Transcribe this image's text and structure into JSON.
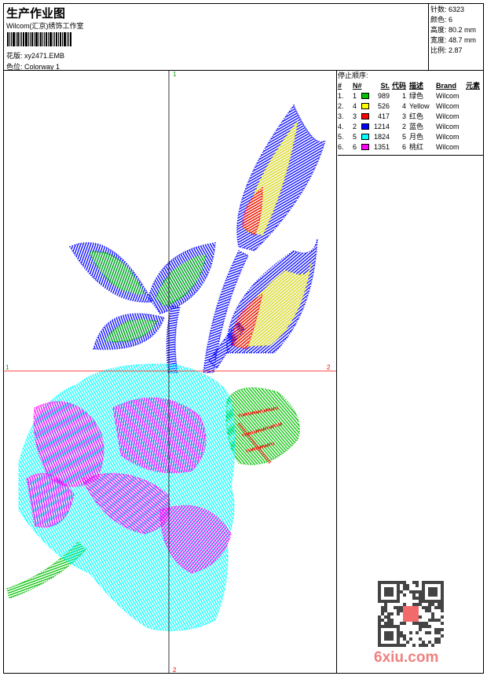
{
  "header": {
    "title": "生产作业图",
    "company": "Wilcom(汇京)绣饰工作室",
    "design_label": "花版:",
    "design_value": "xy2471.EMB",
    "colorway_label": "色位:",
    "colorway_value": "Colorway 1"
  },
  "stats": [
    {
      "label": "针数:",
      "value": "6323"
    },
    {
      "label": "颜色:",
      "value": "6"
    },
    {
      "label": "高度:",
      "value": "80.2 mm"
    },
    {
      "label": "宽度:",
      "value": "48.7 mm"
    },
    {
      "label": "比例:",
      "value": "2.87"
    }
  ],
  "stop_sequence": {
    "title": "停止顺序:",
    "columns": [
      "#",
      "N#",
      "St.",
      "代码",
      "描述",
      "Brand",
      "元素"
    ],
    "rows": [
      {
        "seq": "1.",
        "n": "1",
        "color": "#00c000",
        "st": "989",
        "code": "1",
        "desc": "绿色",
        "brand": "Wilcom"
      },
      {
        "seq": "2.",
        "n": "4",
        "color": "#ffff00",
        "st": "526",
        "code": "4",
        "desc": "Yellow",
        "brand": "Wilcom"
      },
      {
        "seq": "3.",
        "n": "3",
        "color": "#ff0000",
        "st": "417",
        "code": "3",
        "desc": "红色",
        "brand": "Wilcom"
      },
      {
        "seq": "4.",
        "n": "2",
        "color": "#0000ff",
        "st": "1214",
        "code": "2",
        "desc": "蓝色",
        "brand": "Wilcom"
      },
      {
        "seq": "5.",
        "n": "5",
        "color": "#00ffff",
        "st": "1824",
        "code": "5",
        "desc": "月色",
        "brand": "Wilcom"
      },
      {
        "seq": "6.",
        "n": "6",
        "color": "#ff00ff",
        "st": "1351",
        "code": "6",
        "desc": "桃红",
        "brand": "Wilcom"
      }
    ]
  },
  "axes": {
    "top": "1",
    "bottom": "2",
    "left": "1",
    "right": "2"
  },
  "watermark": "6xiu.com"
}
